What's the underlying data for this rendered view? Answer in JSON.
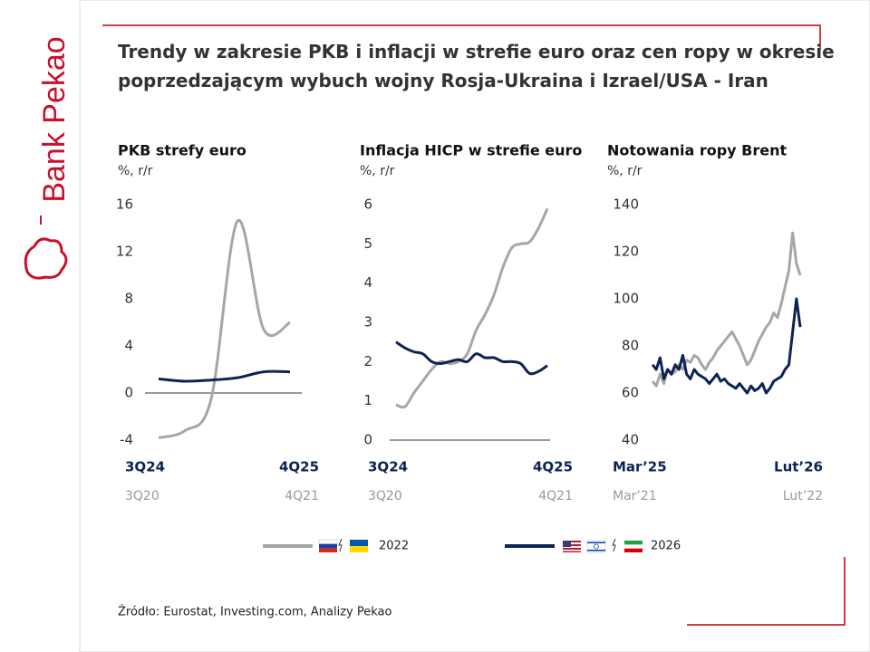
{
  "logo": "Bank Pekao",
  "title": "Trendy w zakresie PKB i inflacji w strefie euro oraz cen ropy w okresie poprzedzającym wybuch wojny Rosja-Ukraina i Izrael/USA - Iran",
  "legend": [
    {
      "label": "2022",
      "color": "#a6a6a6"
    },
    {
      "label": "2026",
      "color": "#0d2257"
    }
  ],
  "source": "Źródło: Eurostat, Investing.com, Analizy Pekao",
  "chart_data": [
    {
      "type": "line",
      "title": "PKB strefy euro",
      "subtitle": "%, r/r",
      "categories": [
        "3Q24",
        null,
        null,
        null,
        null,
        "4Q25"
      ],
      "secondary_categories": [
        "3Q20",
        null,
        null,
        null,
        null,
        "4Q21"
      ],
      "series": [
        {
          "values": [
            -3.8,
            -3.2,
            -0.5,
            14.6,
            5.4,
            6.0
          ]
        },
        {
          "values": [
            1.2,
            1.0,
            1.1,
            1.3,
            1.8,
            1.8
          ]
        }
      ],
      "ylim": [
        -4,
        16
      ],
      "yticks": [
        -4,
        0,
        4,
        8,
        12,
        16
      ]
    },
    {
      "type": "line",
      "title": "Inflacja HICP w strefie euro",
      "subtitle": "%, r/r",
      "categories": [
        "3Q24",
        null,
        null,
        null,
        null,
        null,
        null,
        null,
        null,
        null,
        null,
        null,
        null,
        null,
        null,
        null,
        null,
        "4Q25"
      ],
      "secondary_categories": [
        "3Q20",
        null,
        null,
        null,
        null,
        null,
        null,
        null,
        null,
        null,
        null,
        null,
        null,
        null,
        null,
        null,
        null,
        "4Q21"
      ],
      "series": [
        {
          "values": [
            0.9,
            0.85,
            1.2,
            1.5,
            1.8,
            2.0,
            1.95,
            2.0,
            2.2,
            2.8,
            3.2,
            3.7,
            4.4,
            4.9,
            5.0,
            5.05,
            5.4,
            5.9
          ]
        },
        {
          "values": [
            2.5,
            2.35,
            2.25,
            2.2,
            2.0,
            1.95,
            2.0,
            2.05,
            2.0,
            2.2,
            2.1,
            2.1,
            2.0,
            2.0,
            1.95,
            1.7,
            1.75,
            1.9
          ]
        }
      ],
      "ylim": [
        0,
        6
      ],
      "yticks": [
        0,
        1,
        2,
        3,
        4,
        5,
        6
      ]
    },
    {
      "type": "line",
      "title": "Notowania ropy Brent",
      "subtitle": "%, r/r",
      "categories": [
        "Mar’25",
        null,
        null,
        null,
        null,
        null,
        null,
        null,
        null,
        null,
        null,
        null,
        null,
        null,
        null,
        null,
        null,
        null,
        null,
        null,
        null,
        null,
        null,
        null,
        null,
        null,
        null,
        null,
        null,
        null,
        null,
        null,
        null,
        null,
        null,
        null,
        null,
        null,
        null,
        "Lut’26"
      ],
      "secondary_categories": [
        "Mar’21",
        null,
        null,
        null,
        null,
        null,
        null,
        null,
        null,
        null,
        null,
        null,
        null,
        null,
        null,
        null,
        null,
        null,
        null,
        null,
        null,
        null,
        null,
        null,
        null,
        null,
        null,
        null,
        null,
        null,
        null,
        null,
        null,
        null,
        null,
        null,
        null,
        null,
        null,
        "Lut’22"
      ],
      "series": [
        {
          "values": [
            65,
            63,
            68,
            64,
            70,
            68,
            69,
            72,
            70,
            74,
            73,
            76,
            75,
            72,
            70,
            73,
            75,
            78,
            80,
            82,
            84,
            86,
            83,
            80,
            76,
            72,
            74,
            78,
            82,
            85,
            88,
            90,
            94,
            92,
            98,
            105,
            112,
            128,
            115,
            110
          ]
        },
        {
          "values": [
            72,
            70,
            75,
            66,
            70,
            68,
            72,
            70,
            76,
            68,
            66,
            70,
            68,
            67,
            66,
            64,
            66,
            68,
            65,
            66,
            64,
            63,
            62,
            64,
            62,
            60,
            63,
            61,
            62,
            64,
            60,
            62,
            65,
            66,
            67,
            70,
            72,
            86,
            100,
            88
          ]
        }
      ],
      "ylim": [
        40,
        140
      ],
      "yticks": [
        40,
        60,
        80,
        100,
        120,
        140
      ]
    }
  ]
}
